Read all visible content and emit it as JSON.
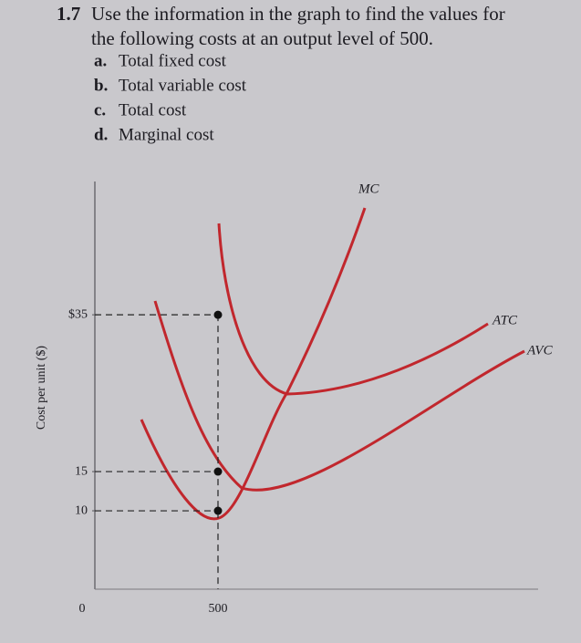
{
  "problem": {
    "number": "1.7",
    "text_lines": [
      "Use the information in the graph to find the values for",
      "the following costs at an output level of 500."
    ],
    "items": [
      {
        "letter": "a.",
        "text": "Total fixed cost"
      },
      {
        "letter": "b.",
        "text": "Total variable cost"
      },
      {
        "letter": "c.",
        "text": "Total cost"
      },
      {
        "letter": "d.",
        "text": "Marginal cost"
      }
    ]
  },
  "chart_data": {
    "type": "line",
    "y_label": "Cost per unit ($)",
    "x": [
      500
    ],
    "series": [
      {
        "name": "MC",
        "color": "#c1272d",
        "values": [
          10
        ]
      },
      {
        "name": "ATC",
        "color": "#c1272d",
        "values": [
          35
        ]
      },
      {
        "name": "AVC",
        "color": "#c1272d",
        "values": [
          15
        ]
      }
    ],
    "xlim": [
      0,
      1800
    ],
    "xticks": [
      0,
      500
    ],
    "ylim": [
      0,
      52
    ],
    "yticks": [
      10,
      15,
      {
        "value": 35,
        "label": "$35"
      }
    ]
  }
}
